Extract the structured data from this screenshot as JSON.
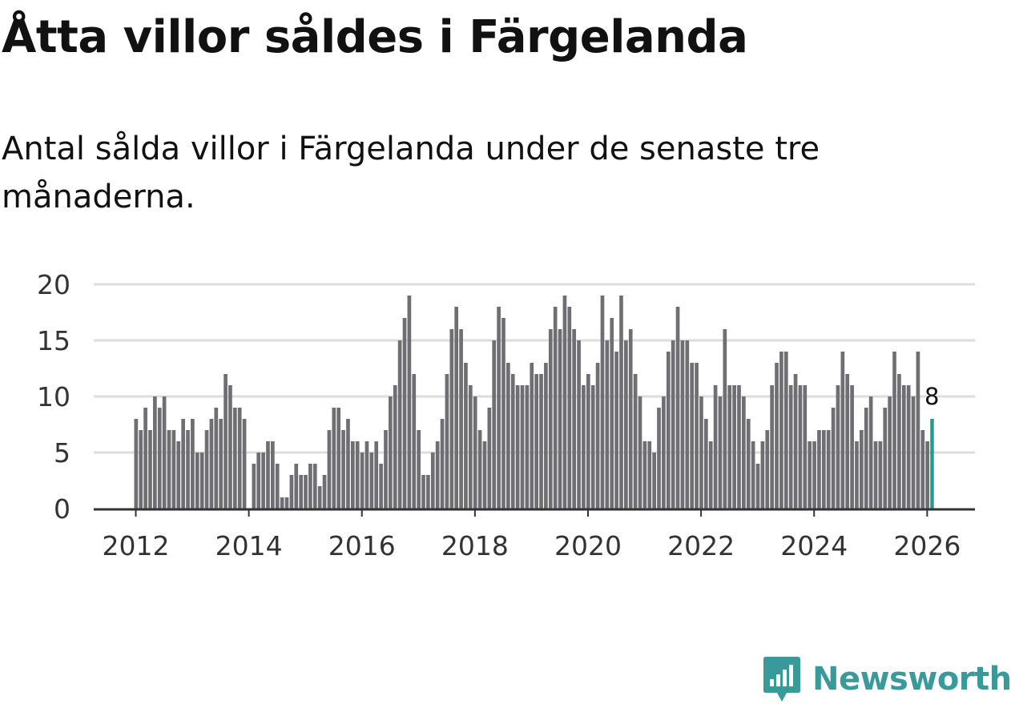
{
  "title": "Åtta villor såldes i Färgelanda",
  "subtitle": "Antal sålda villor i Färgelanda under de senaste tre månaderna.",
  "brand": {
    "name": "Newsworthy",
    "icon": "newsworthy-logo-icon",
    "color": "#3a9a9a"
  },
  "colors": {
    "bar": "#6e6e73",
    "highlight": "#1a9e96",
    "grid": "#dddddd",
    "axis": "#333333"
  },
  "chart_data": {
    "type": "bar",
    "title": "Åtta villor såldes i Färgelanda",
    "xlabel": "",
    "ylabel": "",
    "ylim": [
      0,
      20
    ],
    "yticks": [
      "0",
      "5",
      "10",
      "15",
      "20"
    ],
    "xticks": [
      "2012",
      "2014",
      "2016",
      "2018",
      "2020",
      "2022",
      "2024",
      "2026"
    ],
    "x_start": "2012-01",
    "frequency": "monthly",
    "grid": true,
    "values": [
      8,
      7,
      9,
      7,
      10,
      9,
      10,
      7,
      7,
      6,
      8,
      7,
      8,
      5,
      5,
      7,
      8,
      9,
      8,
      12,
      11,
      9,
      9,
      8,
      0,
      4,
      5,
      5,
      6,
      6,
      4,
      1,
      1,
      3,
      4,
      3,
      3,
      4,
      4,
      2,
      3,
      7,
      9,
      9,
      7,
      8,
      6,
      6,
      5,
      6,
      5,
      6,
      4,
      7,
      10,
      11,
      15,
      17,
      19,
      12,
      7,
      3,
      3,
      5,
      6,
      8,
      12,
      16,
      18,
      16,
      13,
      11,
      10,
      7,
      6,
      9,
      15,
      18,
      17,
      13,
      12,
      11,
      11,
      11,
      13,
      12,
      12,
      13,
      16,
      18,
      16,
      19,
      18,
      16,
      15,
      11,
      12,
      11,
      13,
      19,
      15,
      17,
      14,
      19,
      15,
      16,
      12,
      10,
      6,
      6,
      5,
      9,
      10,
      14,
      15,
      18,
      15,
      15,
      13,
      13,
      10,
      8,
      6,
      11,
      10,
      16,
      11,
      11,
      11,
      10,
      8,
      6,
      4,
      6,
      7,
      11,
      13,
      14,
      14,
      11,
      12,
      11,
      11,
      6,
      6,
      7,
      7,
      7,
      9,
      11,
      14,
      12,
      11,
      6,
      7,
      9,
      10,
      6,
      6,
      9,
      10,
      14,
      12,
      11,
      11,
      10,
      14,
      7,
      6,
      8
    ],
    "highlight_last": true,
    "last_label": "8"
  }
}
